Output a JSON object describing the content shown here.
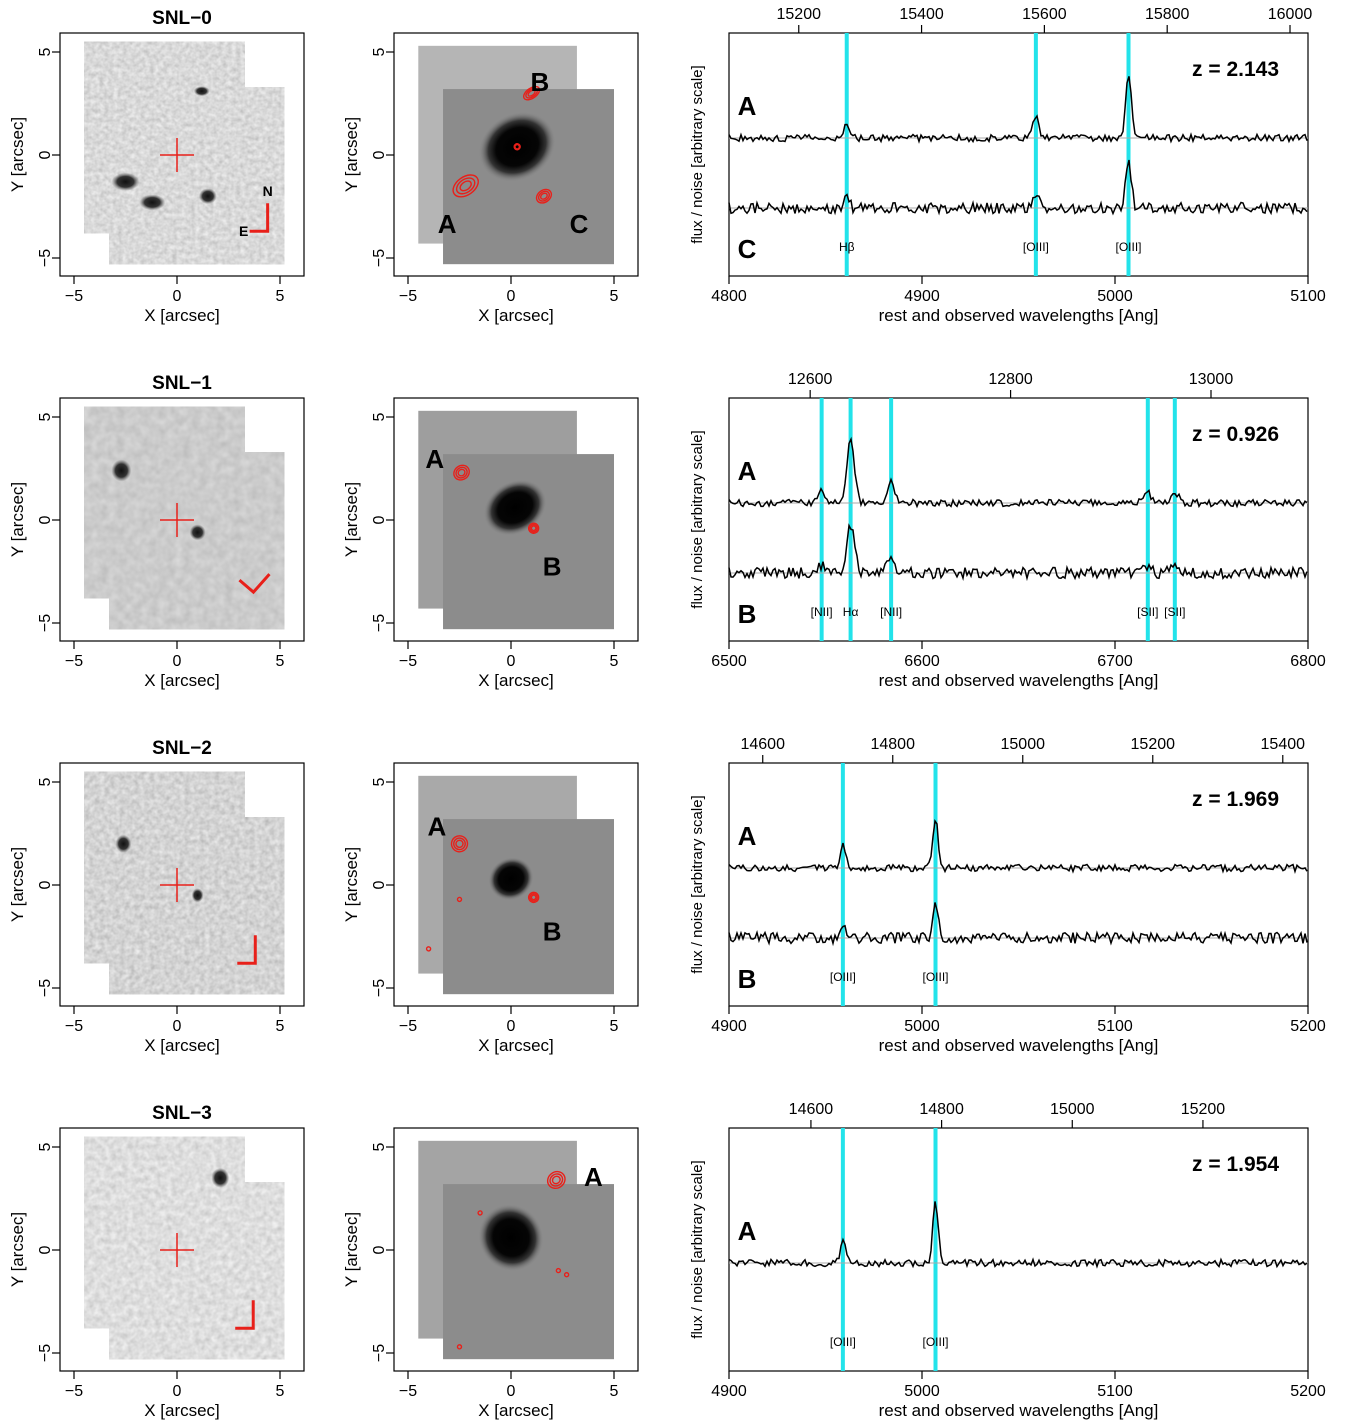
{
  "figure": {
    "image_axis_x_label": "X [arcsec]",
    "image_axis_y_label": "Y [arcsec]",
    "image_ticks": [
      "−5",
      "0",
      "5"
    ],
    "spectrum_y_label": "flux / noise [arbitrary scale]",
    "spectrum_x_label": "rest and observed wavelengths [Ang]",
    "compass_n": "N",
    "compass_e": "E"
  },
  "colors": {
    "ticks": "#000000",
    "contours": "#e8201a",
    "image_labels": "#1a1adc",
    "emission_lines": "#22e3ea",
    "zero_line": "#aaaaaa"
  },
  "rows": [
    {
      "name": "SNL−0",
      "redshift": "z = 2.143",
      "image_labels": [
        "A",
        "B",
        "C"
      ],
      "spectrum_labels": [
        "A",
        "C"
      ],
      "rest_ticks": [
        "4800",
        "4900",
        "5000",
        "5100"
      ],
      "obs_ticks": [
        "15200",
        "15400",
        "15600",
        "15800",
        "16000"
      ],
      "lines": [
        {
          "name": "Hβ",
          "rest": 4861
        },
        {
          "name": "[OIII]",
          "rest": 4959
        },
        {
          "name": "[OIII]",
          "rest": 5007
        }
      ]
    },
    {
      "name": "SNL−1",
      "redshift": "z = 0.926",
      "image_labels": [
        "A",
        "B"
      ],
      "spectrum_labels": [
        "A",
        "B"
      ],
      "rest_ticks": [
        "6500",
        "6600",
        "6700",
        "6800"
      ],
      "obs_ticks": [
        "12600",
        "12800",
        "13000"
      ],
      "lines": [
        {
          "name": "[NII]",
          "rest": 6548
        },
        {
          "name": "Hα",
          "rest": 6563
        },
        {
          "name": "[NII]",
          "rest": 6584
        },
        {
          "name": "[SII]",
          "rest": 6717
        },
        {
          "name": "[SII]",
          "rest": 6731
        }
      ]
    },
    {
      "name": "SNL−2",
      "redshift": "z = 1.969",
      "image_labels": [
        "A",
        "B"
      ],
      "spectrum_labels": [
        "A",
        "B"
      ],
      "rest_ticks": [
        "4900",
        "5000",
        "5100",
        "5200"
      ],
      "obs_ticks": [
        "14600",
        "14800",
        "15000",
        "15200",
        "15400"
      ],
      "lines": [
        {
          "name": "[OIII]",
          "rest": 4959
        },
        {
          "name": "[OIII]",
          "rest": 5007
        }
      ]
    },
    {
      "name": "SNL−3",
      "redshift": "z = 1.954",
      "image_labels": [
        "A"
      ],
      "spectrum_labels": [
        "A"
      ],
      "rest_ticks": [
        "4900",
        "5000",
        "5100",
        "5200"
      ],
      "obs_ticks": [
        "14600",
        "14800",
        "15000",
        "15200"
      ],
      "lines": [
        {
          "name": "[OIII]",
          "rest": 4959
        },
        {
          "name": "[OIII]",
          "rest": 5007
        }
      ]
    }
  ]
}
